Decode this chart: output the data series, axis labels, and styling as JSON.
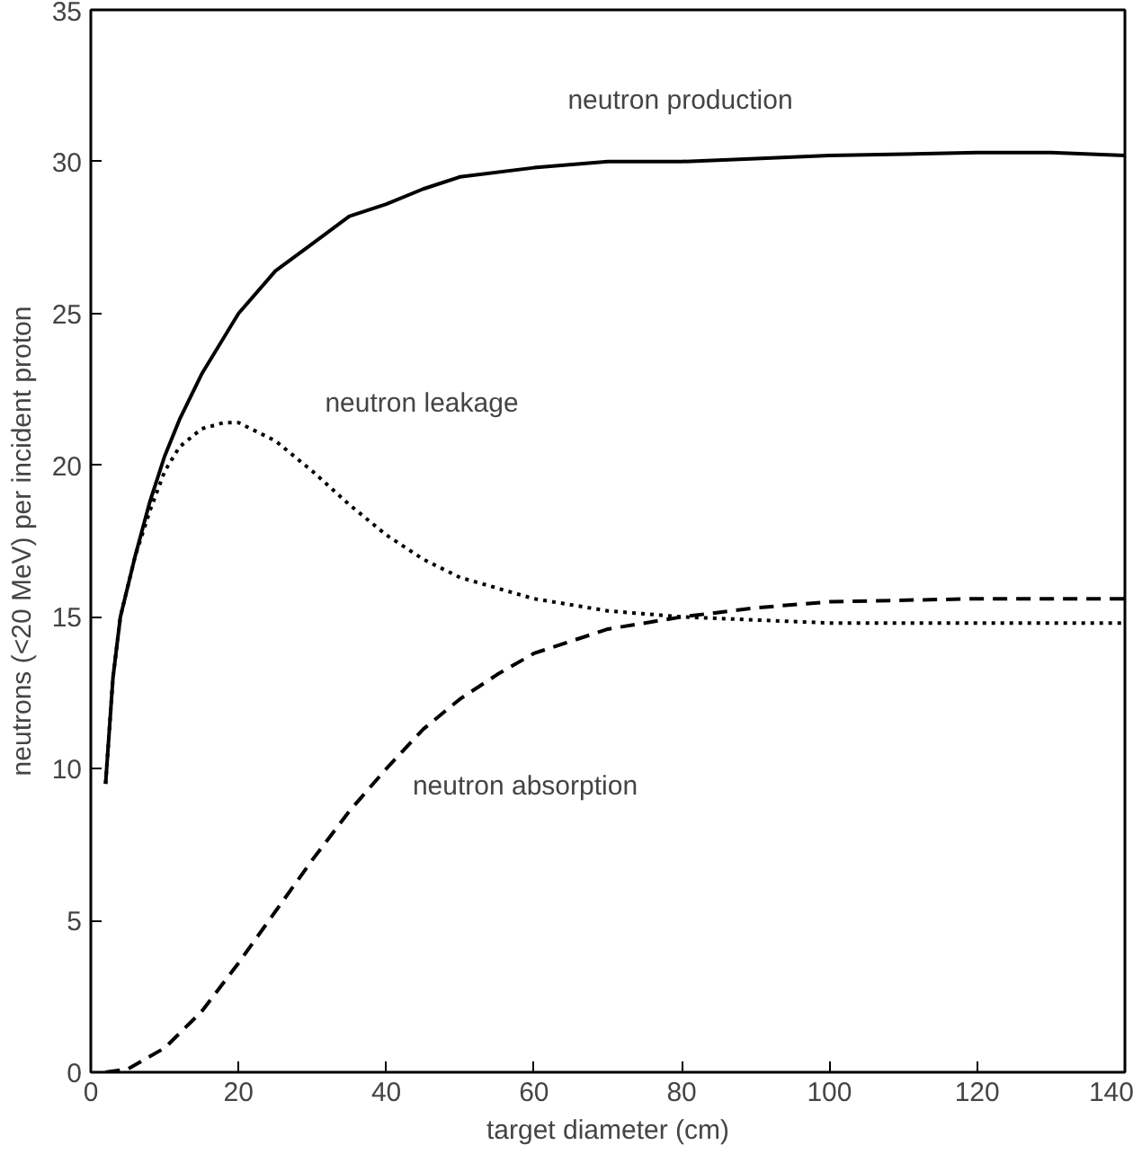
{
  "chart_data": {
    "type": "line",
    "xlabel": "target diameter (cm)",
    "ylabel": "neutrons (<20 MeV) per incident proton",
    "xlim": [
      0,
      140
    ],
    "ylim": [
      0,
      35
    ],
    "xticks": [
      0,
      20,
      40,
      60,
      80,
      100,
      120,
      140
    ],
    "yticks": [
      0,
      5,
      10,
      15,
      20,
      25,
      30,
      35
    ],
    "grid": false,
    "marker": "none",
    "series": [
      {
        "color": "#000000",
        "line_style": "solid",
        "x": [
          2,
          3,
          4,
          6,
          8,
          10,
          12,
          15,
          20,
          25,
          30,
          35,
          40,
          45,
          50,
          60,
          70,
          80,
          90,
          100,
          120,
          130,
          140
        ],
        "values": [
          9.5,
          13,
          15,
          17,
          18.8,
          20.3,
          21.5,
          23,
          25,
          26.4,
          27.3,
          28.2,
          28.6,
          29.1,
          29.5,
          29.8,
          30.0,
          30.0,
          30.1,
          30.2,
          30.3,
          30.3,
          30.2
        ]
      },
      {
        "color": "#000000",
        "line_style": "dotted",
        "x": [
          2,
          3,
          4,
          6,
          8,
          10,
          12,
          15,
          18,
          20,
          25,
          30,
          35,
          40,
          45,
          50,
          60,
          70,
          80,
          90,
          100,
          120,
          140
        ],
        "values": [
          9.5,
          13,
          15,
          17,
          18.5,
          19.8,
          20.6,
          21.2,
          21.4,
          21.4,
          20.8,
          19.8,
          18.7,
          17.7,
          16.9,
          16.3,
          15.6,
          15.2,
          15.0,
          14.9,
          14.8,
          14.8,
          14.8
        ]
      },
      {
        "color": "#000000",
        "line_style": "dashed",
        "x": [
          2,
          5,
          10,
          15,
          20,
          25,
          30,
          35,
          40,
          45,
          50,
          55,
          60,
          70,
          80,
          90,
          100,
          120,
          140
        ],
        "values": [
          0,
          0.1,
          0.8,
          2,
          3.6,
          5.3,
          7,
          8.6,
          10,
          11.3,
          12.3,
          13.1,
          13.8,
          14.6,
          15.0,
          15.3,
          15.5,
          15.6,
          15.6
        ]
      }
    ],
    "annotations": [
      "neutron production",
      "neutron leakage",
      "neutron absorption"
    ]
  }
}
